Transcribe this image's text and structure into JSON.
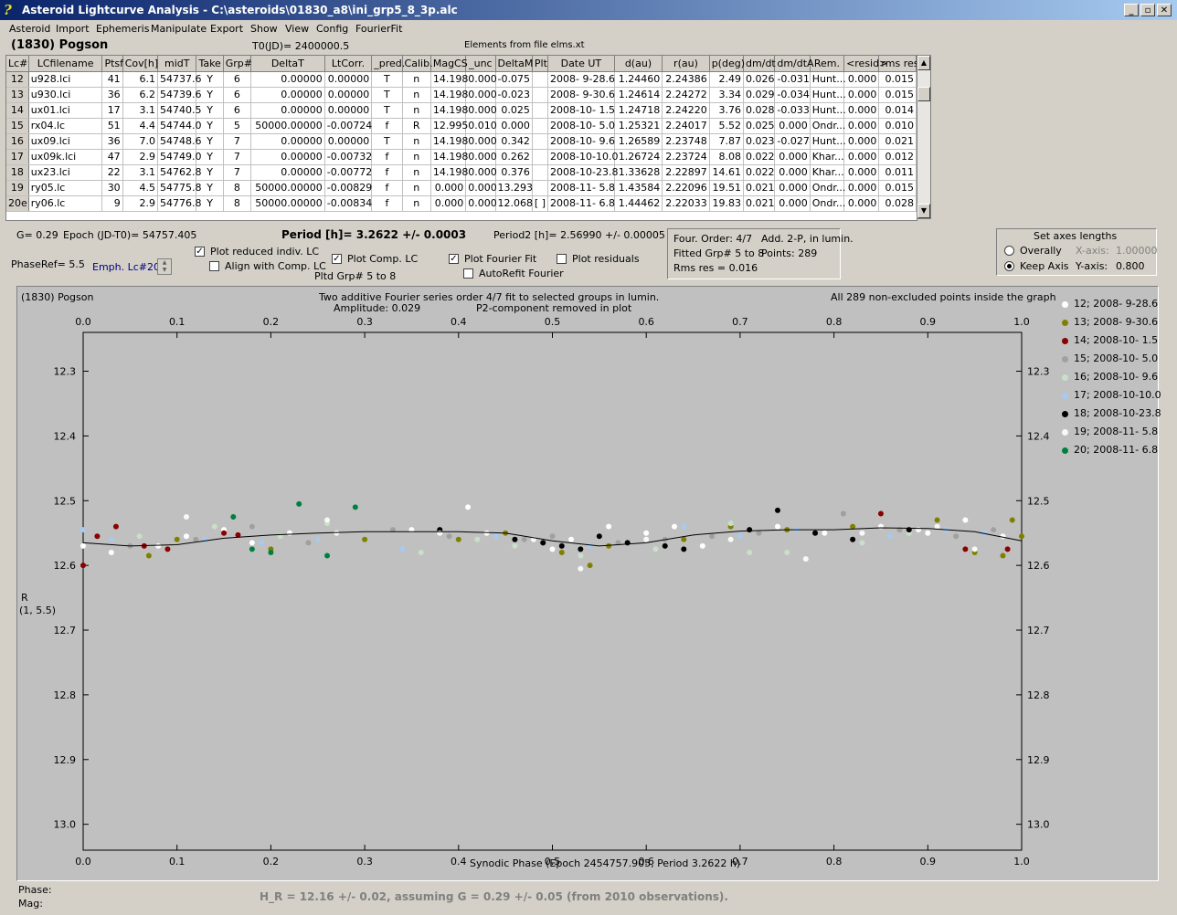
{
  "window": {
    "title": "Asteroid Lightcurve Analysis - C:\\asteroids\\01830_a8\\ini_grp5_8_3p.alc",
    "app_icon": "lightcurve-app-icon",
    "minimize": "_",
    "maximize": "▫",
    "close": "✕"
  },
  "menu": [
    "Asteroid",
    "Import",
    "Ephemeris",
    "Manipulate",
    "Export",
    "Show",
    "View",
    "Config",
    "FourierFit"
  ],
  "header": {
    "object": "(1830) Pogson",
    "t0": "T0(JD)= 2400000.5",
    "elements": "Elements from file elms.xt"
  },
  "table": {
    "columns": [
      "Lc#",
      "LCfilename",
      "Ptsf",
      "Cov[h]",
      "midT",
      "Take",
      "Grp#",
      "DeltaT",
      "LtCorr.",
      "_pred.",
      "Calib.",
      "MagCS",
      "_unc",
      "DeltaM",
      "Plt",
      "Date UT",
      "d(au)",
      "r(au)",
      "p(deg)",
      "dm/dt",
      "dm/dtA",
      "Rem.",
      "<resid>",
      "rms res"
    ],
    "rows": [
      [
        "12",
        "u928.lci",
        "41",
        "6.1",
        "54737.6",
        "Y",
        "6",
        "0.00000",
        "0.00000",
        "T",
        "n",
        "14.198",
        "0.000",
        "-0.075",
        "",
        "2008- 9-28.6",
        "1.24460",
        "2.24386",
        "2.49",
        "0.026",
        "-0.031",
        "Hunt...",
        "0.000",
        "0.015"
      ],
      [
        "13",
        "u930.lci",
        "36",
        "6.2",
        "54739.6",
        "Y",
        "6",
        "0.00000",
        "0.00000",
        "T",
        "n",
        "14.198",
        "0.000",
        "-0.023",
        "",
        "2008- 9-30.6",
        "1.24614",
        "2.24272",
        "3.34",
        "0.029",
        "-0.034",
        "Hunt...",
        "0.000",
        "0.015"
      ],
      [
        "14",
        "ux01.lci",
        "17",
        "3.1",
        "54740.5",
        "Y",
        "6",
        "0.00000",
        "0.00000",
        "T",
        "n",
        "14.198",
        "0.000",
        "0.025",
        "",
        "2008-10- 1.5",
        "1.24718",
        "2.24220",
        "3.76",
        "0.028",
        "-0.033",
        "Hunt...",
        "0.000",
        "0.014"
      ],
      [
        "15",
        "rx04.lc",
        "51",
        "4.4",
        "54744.0",
        "Y",
        "5",
        "50000.00000",
        "-0.00724",
        "f",
        "R",
        "12.995",
        "0.010",
        "0.000",
        "",
        "2008-10- 5.0",
        "1.25321",
        "2.24017",
        "5.52",
        "0.025",
        "0.000",
        "Ondr...",
        "0.000",
        "0.010"
      ],
      [
        "16",
        "ux09.lci",
        "36",
        "7.0",
        "54748.6",
        "Y",
        "7",
        "0.00000",
        "0.00000",
        "T",
        "n",
        "14.198",
        "0.000",
        "0.342",
        "",
        "2008-10- 9.6",
        "1.26589",
        "2.23748",
        "7.87",
        "0.023",
        "-0.027",
        "Hunt...",
        "0.000",
        "0.021"
      ],
      [
        "17",
        "ux09k.lci",
        "47",
        "2.9",
        "54749.0",
        "Y",
        "7",
        "0.00000",
        "-0.00732",
        "f",
        "n",
        "14.198",
        "0.000",
        "0.262",
        "",
        "2008-10-10.0",
        "1.26724",
        "2.23724",
        "8.08",
        "0.022",
        "0.000",
        "Khar...",
        "0.000",
        "0.012"
      ],
      [
        "18",
        "ux23.lci",
        "22",
        "3.1",
        "54762.8",
        "Y",
        "7",
        "0.00000",
        "-0.00772",
        "f",
        "n",
        "14.198",
        "0.000",
        "0.376",
        "",
        "2008-10-23.8",
        "1.33628",
        "2.22897",
        "14.61",
        "0.022",
        "0.000",
        "Khar...",
        "0.000",
        "0.011"
      ],
      [
        "19",
        "ry05.lc",
        "30",
        "4.5",
        "54775.8",
        "Y",
        "8",
        "50000.00000",
        "-0.00829",
        "f",
        "n",
        "0.000",
        "0.000",
        "13.293",
        "",
        "2008-11- 5.8",
        "1.43584",
        "2.22096",
        "19.51",
        "0.021",
        "0.000",
        "Ondr...",
        "0.000",
        "0.015"
      ],
      [
        "20e",
        "ry06.lc",
        "9",
        "2.9",
        "54776.8",
        "Y",
        "8",
        "50000.00000",
        "-0.00834",
        "f",
        "n",
        "0.000",
        "0.000",
        "12.068",
        "[ ]",
        "2008-11- 6.8",
        "1.44462",
        "2.22033",
        "19.83",
        "0.021",
        "0.000",
        "Ondr...",
        "0.000",
        "0.028"
      ]
    ]
  },
  "controls": {
    "g_label": "G= 0.29",
    "epoch": "Epoch (JD-T0)= 54757.405",
    "period": "Period [h]= 3.2622 +/- 0.0003",
    "period2": "Period2 [h]= 2.56990 +/- 0.00005",
    "phase_ref": "PhaseRef= 5.5",
    "emph": "Emph. Lc#20:",
    "plot_reduced": "Plot reduced indiv. LC",
    "align": "Align with Comp. LC",
    "plot_comp": "Plot Comp. LC",
    "pltd_grp": "Pltd Grp#  5   to   8",
    "plot_fourier": "Plot Fourier Fit",
    "autorefit": "AutoRefit Fourier",
    "plot_resid": "Plot residuals",
    "four_order": "Four. Order:  4/7",
    "add2p": "Add. 2-P, in lumin.",
    "fitted_grp": "Fitted Grp# 5 to 8",
    "points": "Points: 289",
    "rms_res": "Rms res     = 0.016",
    "axes_title": "Set axes lengths",
    "overally": "Overally",
    "keep_axis": "Keep Axis",
    "xaxis_label": "X-axis:",
    "xaxis_val": "1.00000",
    "yaxis_label": "Y-axis:",
    "yaxis_val": "0.800"
  },
  "plot": {
    "object": "(1830) Pogson",
    "desc1": "Two additive Fourier series order 4/7 fit to selected groups in lumin.",
    "desc2": "Amplitude: 0.029",
    "desc3": "P2-component removed in plot",
    "inside": "All 289 non-excluded points inside the graph",
    "ylabel1": "R",
    "ylabel2": "(1, 5.5)",
    "xlabel": "Synodic Phase (Epoch 2454757.905, Period 3.2622 h)",
    "xticks": [
      "0.0",
      "0.1",
      "0.2",
      "0.3",
      "0.4",
      "0.5",
      "0.6",
      "0.7",
      "0.8",
      "0.9",
      "1.0"
    ],
    "yticks": [
      "12.3",
      "12.4",
      "12.5",
      "12.6",
      "12.7",
      "12.8",
      "12.9",
      "13.0"
    ],
    "legend": [
      {
        "label": "12; 2008- 9-28.6",
        "color": "#ffffff"
      },
      {
        "label": "13; 2008- 9-30.6",
        "color": "#808000"
      },
      {
        "label": "14; 2008-10- 1.5",
        "color": "#8b0000"
      },
      {
        "label": "15; 2008-10- 5.0",
        "color": "#a0a0a0"
      },
      {
        "label": "16; 2008-10- 9.6",
        "color": "#c8e0c8"
      },
      {
        "label": "17; 2008-10-10.0",
        "color": "#a6caf0"
      },
      {
        "label": "18; 2008-10-23.8",
        "color": "#000000"
      },
      {
        "label": "19; 2008-11- 5.8",
        "color": "#f8f8f8"
      },
      {
        "label": "20; 2008-11- 6.8",
        "color": "#008040"
      }
    ]
  },
  "chart_data": {
    "type": "scatter",
    "xlabel": "Synodic Phase (Epoch 2454757.905, Period 3.2622 h)",
    "ylabel": "R",
    "xlim": [
      0.0,
      1.0
    ],
    "ylim": [
      12.24,
      13.04
    ],
    "y_inverted": true,
    "fourier_fit": {
      "x": [
        0.0,
        0.05,
        0.1,
        0.15,
        0.2,
        0.25,
        0.3,
        0.35,
        0.4,
        0.45,
        0.5,
        0.55,
        0.6,
        0.65,
        0.7,
        0.75,
        0.8,
        0.85,
        0.9,
        0.95,
        1.0
      ],
      "y": [
        12.565,
        12.57,
        12.568,
        12.558,
        12.553,
        12.55,
        12.548,
        12.548,
        12.548,
        12.55,
        12.562,
        12.57,
        12.565,
        12.553,
        12.547,
        12.545,
        12.545,
        12.542,
        12.543,
        12.548,
        12.562
      ]
    },
    "series": [
      {
        "name": "12; 2008- 9-28.6",
        "color": "#ffffff",
        "x": [
          0.0,
          0.03,
          0.08,
          0.11,
          0.15,
          0.18,
          0.22,
          0.35,
          0.41,
          0.43,
          0.5,
          0.52,
          0.56,
          0.6,
          0.63,
          0.66,
          0.74,
          0.79,
          0.85,
          0.9,
          0.94,
          0.98
        ],
        "y": [
          12.57,
          12.58,
          12.57,
          12.555,
          12.545,
          12.565,
          12.55,
          12.545,
          12.51,
          12.55,
          12.575,
          12.56,
          12.54,
          12.55,
          12.54,
          12.57,
          12.54,
          12.55,
          12.54,
          12.55,
          12.53,
          12.555
        ]
      },
      {
        "name": "13; 2008- 9-30.6",
        "color": "#808000",
        "x": [
          0.07,
          0.1,
          0.2,
          0.3,
          0.4,
          0.45,
          0.49,
          0.51,
          0.54,
          0.56,
          0.64,
          0.69,
          0.75,
          0.82,
          0.91,
          0.95,
          0.98,
          0.99,
          1.0
        ],
        "y": [
          12.585,
          12.56,
          12.575,
          12.56,
          12.56,
          12.55,
          12.565,
          12.58,
          12.6,
          12.57,
          12.56,
          12.54,
          12.545,
          12.54,
          12.53,
          12.58,
          12.585,
          12.53,
          12.555
        ]
      },
      {
        "name": "14; 2008-10- 1.5",
        "color": "#8b0000",
        "x": [
          0.0,
          0.015,
          0.035,
          0.065,
          0.09,
          0.15,
          0.165,
          0.85,
          0.94,
          0.985
        ],
        "y": [
          12.6,
          12.555,
          12.54,
          12.57,
          12.575,
          12.55,
          12.553,
          12.52,
          12.575,
          12.575
        ]
      },
      {
        "name": "15; 2008-10- 5.0",
        "color": "#a0a0a0",
        "x": [
          0.05,
          0.12,
          0.18,
          0.24,
          0.33,
          0.39,
          0.47,
          0.5,
          0.57,
          0.62,
          0.67,
          0.72,
          0.78,
          0.81,
          0.87,
          0.93,
          0.97
        ],
        "y": [
          12.57,
          12.56,
          12.54,
          12.565,
          12.545,
          12.555,
          12.56,
          12.555,
          12.565,
          12.56,
          12.555,
          12.55,
          12.55,
          12.52,
          12.545,
          12.555,
          12.545
        ]
      },
      {
        "name": "16; 2008-10- 9.6",
        "color": "#c8e0c8",
        "x": [
          0.06,
          0.14,
          0.21,
          0.26,
          0.29,
          0.36,
          0.42,
          0.46,
          0.53,
          0.61,
          0.69,
          0.71,
          0.75,
          0.83,
          0.88,
          0.92
        ],
        "y": [
          12.555,
          12.54,
          12.555,
          12.535,
          12.51,
          12.58,
          12.56,
          12.57,
          12.585,
          12.575,
          12.535,
          12.58,
          12.58,
          12.565,
          12.55,
          12.545
        ]
      },
      {
        "name": "17; 2008-10-10.0",
        "color": "#a6caf0",
        "x": [
          0.0,
          0.03,
          0.13,
          0.19,
          0.25,
          0.34,
          0.44,
          0.54,
          0.64,
          0.7,
          0.76,
          0.86,
          0.92,
          0.96
        ],
        "y": [
          12.545,
          12.56,
          12.56,
          12.565,
          12.56,
          12.575,
          12.555,
          12.57,
          12.54,
          12.555,
          12.545,
          12.555,
          12.545,
          12.55
        ]
      },
      {
        "name": "18; 2008-10-23.8",
        "color": "#000000",
        "x": [
          0.38,
          0.46,
          0.49,
          0.51,
          0.53,
          0.55,
          0.58,
          0.62,
          0.64,
          0.71,
          0.74,
          0.78,
          0.82,
          0.88
        ],
        "y": [
          12.545,
          12.56,
          12.565,
          12.57,
          12.575,
          12.555,
          12.565,
          12.57,
          12.575,
          12.545,
          12.515,
          12.55,
          12.56,
          12.545
        ]
      },
      {
        "name": "19; 2008-11- 5.8",
        "color": "#f8f8f8",
        "x": [
          0.11,
          0.26,
          0.27,
          0.38,
          0.48,
          0.53,
          0.6,
          0.69,
          0.77,
          0.83,
          0.89,
          0.91,
          0.95
        ],
        "y": [
          12.525,
          12.53,
          12.55,
          12.55,
          12.56,
          12.605,
          12.56,
          12.56,
          12.59,
          12.55,
          12.545,
          12.54,
          12.575
        ]
      },
      {
        "name": "20; 2008-11- 6.8",
        "color": "#008040",
        "x": [
          0.16,
          0.18,
          0.2,
          0.23,
          0.26,
          0.29
        ],
        "y": [
          12.525,
          12.575,
          12.58,
          12.505,
          12.585,
          12.51
        ]
      }
    ]
  },
  "footer": {
    "phase": "Phase:",
    "mag": "Mag:",
    "hr": "H_R = 12.16 +/- 0.02, assuming G = 0.29 +/- 0.05 (from 2010 observations)."
  }
}
